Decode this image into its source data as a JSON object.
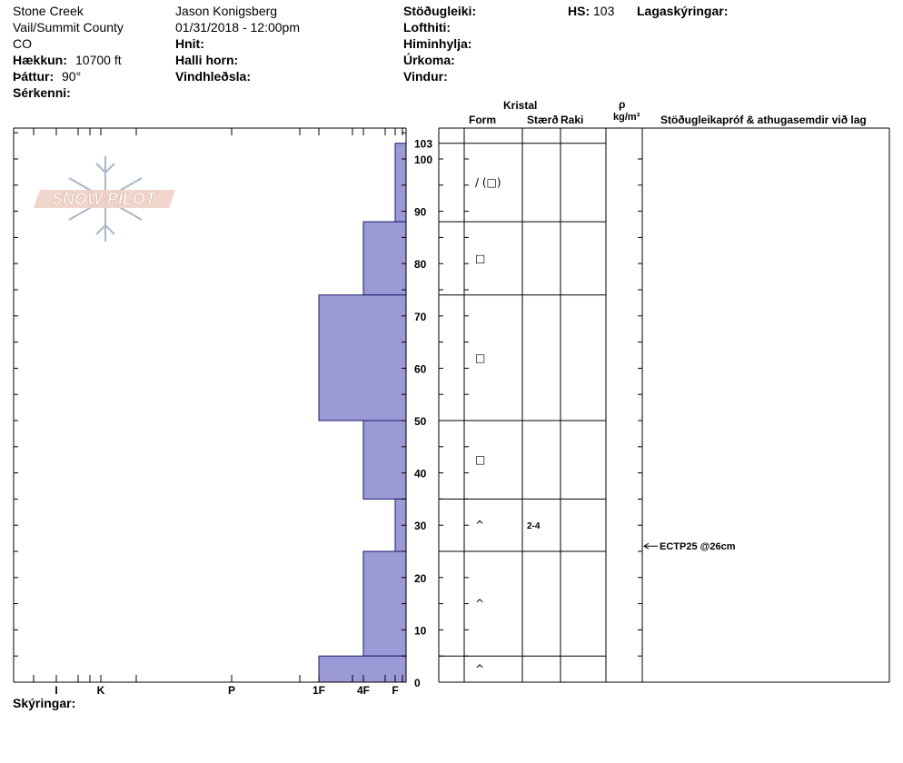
{
  "header": {
    "location_line1": "Stone Creek",
    "location_line2": "Vail/Summit County",
    "location_line3": "CO",
    "elevation_label": "Hækkun:",
    "elevation_value": "10700 ft",
    "aspect_label": "Þáttur:",
    "aspect_value": "90°",
    "features_label": "Sérkenni:",
    "observer": "Jason Konigsberg",
    "datetime": "01/31/2018 - 12:00pm",
    "coords_label": "Hnit:",
    "slope_label": "Halli horn:",
    "wind_loading_label": "Vindhleðsla:",
    "stability_label": "Stöðugleiki:",
    "air_temp_label": "Lofthiti:",
    "sky_label": "Himinhylja:",
    "precip_label": "Úrkoma:",
    "wind_label": "Vindur:",
    "hs_label": "HS:",
    "hs_value": "103",
    "layer_notes_label": "Lagaskýringar:"
  },
  "logo": {
    "text": "SNOW PILOT"
  },
  "table_headers": {
    "crystal": "Kristal",
    "form": "Form",
    "size": "Stærð",
    "moisture": "Raki",
    "density_symbol": "ρ",
    "density_unit": "kg/m³",
    "stability_notes": "Stöðugleikapróf & athugasemdir við lag"
  },
  "footer": {
    "notes_label": "Skýringar:"
  },
  "colors": {
    "layer_fill": "#9b99d6",
    "layer_stroke": "#1a1a6e"
  },
  "chart_data": {
    "type": "bar",
    "ylim": [
      0,
      106
    ],
    "y_ticks": [
      0,
      10,
      20,
      30,
      40,
      50,
      60,
      70,
      80,
      90,
      100,
      103
    ],
    "hardness_scale": [
      "I",
      "K",
      "P",
      "1F",
      "4F",
      "F"
    ],
    "layers": [
      {
        "top": 103,
        "bottom": 88,
        "hardness": "F",
        "form": "/ (□)"
      },
      {
        "top": 88,
        "bottom": 74,
        "hardness": "4F",
        "form": "□"
      },
      {
        "top": 74,
        "bottom": 50,
        "hardness": "1F",
        "form": "□"
      },
      {
        "top": 50,
        "bottom": 35,
        "hardness": "4F",
        "form": "□"
      },
      {
        "top": 35,
        "bottom": 25,
        "hardness": "F",
        "form": "^",
        "size": "2-4"
      },
      {
        "top": 25,
        "bottom": 5,
        "hardness": "4F",
        "form": "^"
      },
      {
        "top": 5,
        "bottom": 0,
        "hardness": "1F",
        "form": "^"
      }
    ],
    "tests": [
      {
        "depth": 26,
        "label": "ECTP25 @26cm"
      }
    ]
  }
}
